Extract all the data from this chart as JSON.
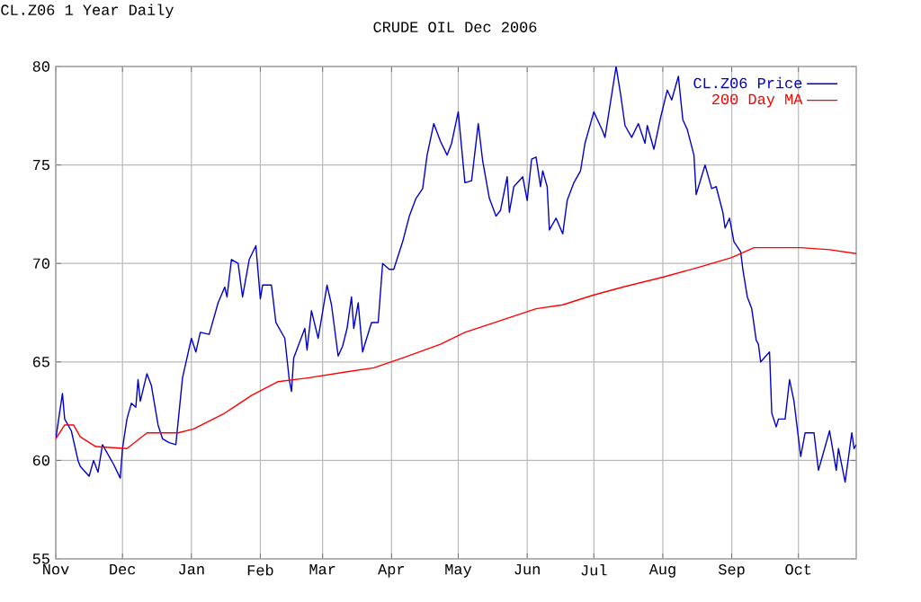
{
  "chart_data": {
    "type": "line",
    "title": "CRUDE OIL Dec 2006",
    "subtitle": "CL.Z06 1 Year Daily",
    "xlim": [
      "2005-11-01",
      "2006-10-27"
    ],
    "xticks": [
      {
        "value": "2005-11-01",
        "label": "Nov"
      },
      {
        "value": "2005-12-01",
        "label": "Dec"
      },
      {
        "value": "2006-01-01",
        "label": "Jan"
      },
      {
        "value": "2006-02-01",
        "label": "Feb"
      },
      {
        "value": "2006-03-01",
        "label": "Mar"
      },
      {
        "value": "2006-04-01",
        "label": "Apr"
      },
      {
        "value": "2006-05-01",
        "label": "May"
      },
      {
        "value": "2006-06-01",
        "label": "Jun"
      },
      {
        "value": "2006-07-01",
        "label": "Jul"
      },
      {
        "value": "2006-08-01",
        "label": "Aug"
      },
      {
        "value": "2006-09-01",
        "label": "Sep"
      },
      {
        "value": "2006-10-01",
        "label": "Oct"
      }
    ],
    "ylim": [
      55,
      80
    ],
    "yticks": [
      55,
      60,
      65,
      70,
      75,
      80
    ],
    "grid": true,
    "legend": "top right",
    "marker": "none",
    "line_style": "solid",
    "series": [
      {
        "name": "CL.Z06 Price",
        "color": "#0000cc",
        "x": [
          "2005-11-01",
          "2005-11-04",
          "2005-11-05",
          "2005-11-08",
          "2005-11-11",
          "2005-11-12",
          "2005-11-16",
          "2005-11-18",
          "2005-11-20",
          "2005-11-22",
          "2005-11-27",
          "2005-11-30",
          "2005-12-01",
          "2005-12-03",
          "2005-12-05",
          "2005-12-07",
          "2005-12-08",
          "2005-12-09",
          "2005-12-12",
          "2005-12-14",
          "2005-12-17",
          "2005-12-19",
          "2005-12-22",
          "2005-12-25",
          "2005-12-28",
          "2006-01-01",
          "2006-01-03",
          "2006-01-05",
          "2006-01-09",
          "2006-01-13",
          "2006-01-16",
          "2006-01-17",
          "2006-01-19",
          "2006-01-22",
          "2006-01-24",
          "2006-01-27",
          "2006-01-30",
          "2006-02-01",
          "2006-02-02",
          "2006-02-06",
          "2006-02-08",
          "2006-02-12",
          "2006-02-14",
          "2006-02-15",
          "2006-02-16",
          "2006-02-18",
          "2006-02-21",
          "2006-02-22",
          "2006-02-24",
          "2006-02-27",
          "2006-03-03",
          "2006-03-05",
          "2006-03-08",
          "2006-03-10",
          "2006-03-12",
          "2006-03-14",
          "2006-03-15",
          "2006-03-17",
          "2006-03-19",
          "2006-03-20",
          "2006-03-23",
          "2006-03-26",
          "2006-03-28",
          "2006-03-31",
          "2006-04-02",
          "2006-04-06",
          "2006-04-09",
          "2006-04-12",
          "2006-04-15",
          "2006-04-17",
          "2006-04-20",
          "2006-04-23",
          "2006-04-26",
          "2006-04-28",
          "2006-05-01",
          "2006-05-04",
          "2006-05-07",
          "2006-05-10",
          "2006-05-12",
          "2006-05-15",
          "2006-05-18",
          "2006-05-20",
          "2006-05-23",
          "2006-05-24",
          "2006-05-26",
          "2006-05-30",
          "2006-06-01",
          "2006-06-03",
          "2006-06-05",
          "2006-06-07",
          "2006-06-08",
          "2006-06-10",
          "2006-06-11",
          "2006-06-14",
          "2006-06-17",
          "2006-06-19",
          "2006-06-22",
          "2006-06-25",
          "2006-06-27",
          "2006-07-01",
          "2006-07-05",
          "2006-07-06",
          "2006-07-11",
          "2006-07-13",
          "2006-07-15",
          "2006-07-18",
          "2006-07-21",
          "2006-07-24",
          "2006-07-25",
          "2006-07-28",
          "2006-07-31",
          "2006-08-03",
          "2006-08-05",
          "2006-08-08",
          "2006-08-10",
          "2006-08-12",
          "2006-08-15",
          "2006-08-16",
          "2006-08-20",
          "2006-08-23",
          "2006-08-25",
          "2006-08-28",
          "2006-08-29",
          "2006-08-31",
          "2006-09-02",
          "2006-09-05",
          "2006-09-06",
          "2006-09-08",
          "2006-09-10",
          "2006-09-12",
          "2006-09-13",
          "2006-09-14",
          "2006-09-18",
          "2006-09-19",
          "2006-09-21",
          "2006-09-22",
          "2006-09-25",
          "2006-09-27",
          "2006-09-29",
          "2006-10-02",
          "2006-10-04",
          "2006-10-08",
          "2006-10-10",
          "2006-10-15",
          "2006-10-18",
          "2006-10-19",
          "2006-10-22",
          "2006-10-25",
          "2006-10-26",
          "2006-10-27"
        ],
        "values": [
          61.1,
          63.4,
          62.1,
          61.5,
          60.0,
          59.7,
          59.2,
          60.0,
          59.4,
          60.8,
          59.8,
          59.1,
          60.6,
          62.1,
          62.9,
          62.7,
          64.1,
          63.0,
          64.4,
          63.8,
          61.8,
          61.1,
          60.9,
          60.8,
          64.2,
          66.2,
          65.5,
          66.5,
          66.4,
          68.0,
          68.8,
          68.3,
          70.2,
          70.0,
          68.3,
          70.2,
          70.9,
          68.2,
          68.9,
          68.9,
          67.0,
          66.2,
          64.1,
          63.5,
          65.2,
          65.8,
          66.7,
          65.6,
          67.6,
          66.2,
          68.9,
          67.9,
          65.3,
          65.8,
          66.7,
          68.3,
          66.7,
          68.0,
          65.5,
          65.9,
          67.0,
          67.0,
          70.0,
          69.7,
          69.7,
          71.1,
          72.4,
          73.3,
          73.8,
          75.5,
          77.1,
          76.2,
          75.5,
          76.1,
          77.7,
          74.1,
          74.2,
          77.1,
          75.2,
          73.3,
          72.4,
          72.7,
          74.4,
          72.6,
          73.9,
          74.4,
          73.2,
          75.3,
          75.4,
          73.9,
          74.7,
          73.9,
          71.7,
          72.3,
          71.5,
          73.2,
          74.1,
          74.7,
          76.1,
          77.7,
          76.7,
          76.4,
          80.0,
          78.6,
          77.0,
          76.4,
          77.1,
          76.1,
          77.0,
          75.8,
          77.4,
          78.8,
          78.3,
          79.5,
          77.3,
          76.8,
          75.5,
          73.5,
          75.0,
          73.8,
          73.9,
          72.6,
          71.8,
          72.3,
          71.1,
          70.6,
          69.7,
          68.3,
          67.7,
          66.1,
          65.9,
          65.0,
          65.5,
          62.4,
          61.7,
          62.1,
          62.1,
          64.1,
          63.0,
          60.2,
          61.4,
          61.4,
          59.5,
          61.5,
          59.5,
          60.6,
          58.9,
          61.4,
          60.6,
          60.8
        ]
      },
      {
        "name": "200 Day MA",
        "color": "#ff0000",
        "x": [
          "2005-11-01",
          "2005-11-05",
          "2005-11-09",
          "2005-11-12",
          "2005-11-19",
          "2005-12-03",
          "2005-12-12",
          "2005-12-26",
          "2006-01-02",
          "2006-01-16",
          "2006-01-28",
          "2006-02-09",
          "2006-02-23",
          "2006-03-12",
          "2006-03-24",
          "2006-04-06",
          "2006-04-23",
          "2006-05-04",
          "2006-05-12",
          "2006-06-05",
          "2006-06-17",
          "2006-07-01",
          "2006-07-14",
          "2006-08-01",
          "2006-08-17",
          "2006-09-01",
          "2006-09-11",
          "2006-10-02",
          "2006-10-15",
          "2006-10-27"
        ],
        "values": [
          61.1,
          61.8,
          61.8,
          61.2,
          60.7,
          60.6,
          61.4,
          61.4,
          61.6,
          62.4,
          63.3,
          64.0,
          64.2,
          64.5,
          64.7,
          65.2,
          65.9,
          66.5,
          66.8,
          67.7,
          67.9,
          68.4,
          68.8,
          69.3,
          69.8,
          70.3,
          70.8,
          70.8,
          70.7,
          70.5
        ]
      }
    ]
  }
}
